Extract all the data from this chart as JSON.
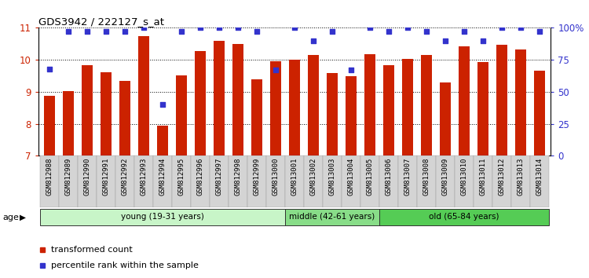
{
  "title": "GDS3942 / 222127_s_at",
  "categories": [
    "GSM812988",
    "GSM812989",
    "GSM812990",
    "GSM812991",
    "GSM812992",
    "GSM812993",
    "GSM812994",
    "GSM812995",
    "GSM812996",
    "GSM812997",
    "GSM812998",
    "GSM812999",
    "GSM813000",
    "GSM813001",
    "GSM813002",
    "GSM813003",
    "GSM813004",
    "GSM813005",
    "GSM813006",
    "GSM813007",
    "GSM813008",
    "GSM813009",
    "GSM813010",
    "GSM813011",
    "GSM813012",
    "GSM813013",
    "GSM813014"
  ],
  "bar_values": [
    8.88,
    9.02,
    9.82,
    9.6,
    9.35,
    10.75,
    7.93,
    9.52,
    10.28,
    10.58,
    10.5,
    9.4,
    9.95,
    10.0,
    10.15,
    9.58,
    9.48,
    10.18,
    9.82,
    10.02,
    10.15,
    9.3,
    10.42,
    9.93,
    10.48,
    10.32,
    9.65
  ],
  "dot_values": [
    68,
    97,
    97,
    97,
    97,
    100,
    40,
    97,
    100,
    100,
    100,
    97,
    67,
    100,
    90,
    97,
    67,
    100,
    97,
    100,
    97,
    90,
    97,
    90,
    100,
    100,
    97
  ],
  "bar_color": "#cc2200",
  "dot_color": "#3333cc",
  "ylim_left": [
    7,
    11
  ],
  "ylim_right": [
    0,
    100
  ],
  "yticks_left": [
    7,
    8,
    9,
    10,
    11
  ],
  "yticks_right": [
    0,
    25,
    50,
    75,
    100
  ],
  "ytick_labels_right": [
    "0",
    "25",
    "50",
    "75",
    "100%"
  ],
  "groups": [
    {
      "label": "young (19-31 years)",
      "start": 0,
      "end": 13,
      "color": "#c8f5c8"
    },
    {
      "label": "middle (42-61 years)",
      "start": 13,
      "end": 18,
      "color": "#88dd88"
    },
    {
      "label": "old (65-84 years)",
      "start": 18,
      "end": 27,
      "color": "#55cc55"
    }
  ],
  "age_label": "age",
  "legend_items": [
    {
      "label": "transformed count",
      "color": "#cc2200"
    },
    {
      "label": "percentile rank within the sample",
      "color": "#3333cc"
    }
  ]
}
